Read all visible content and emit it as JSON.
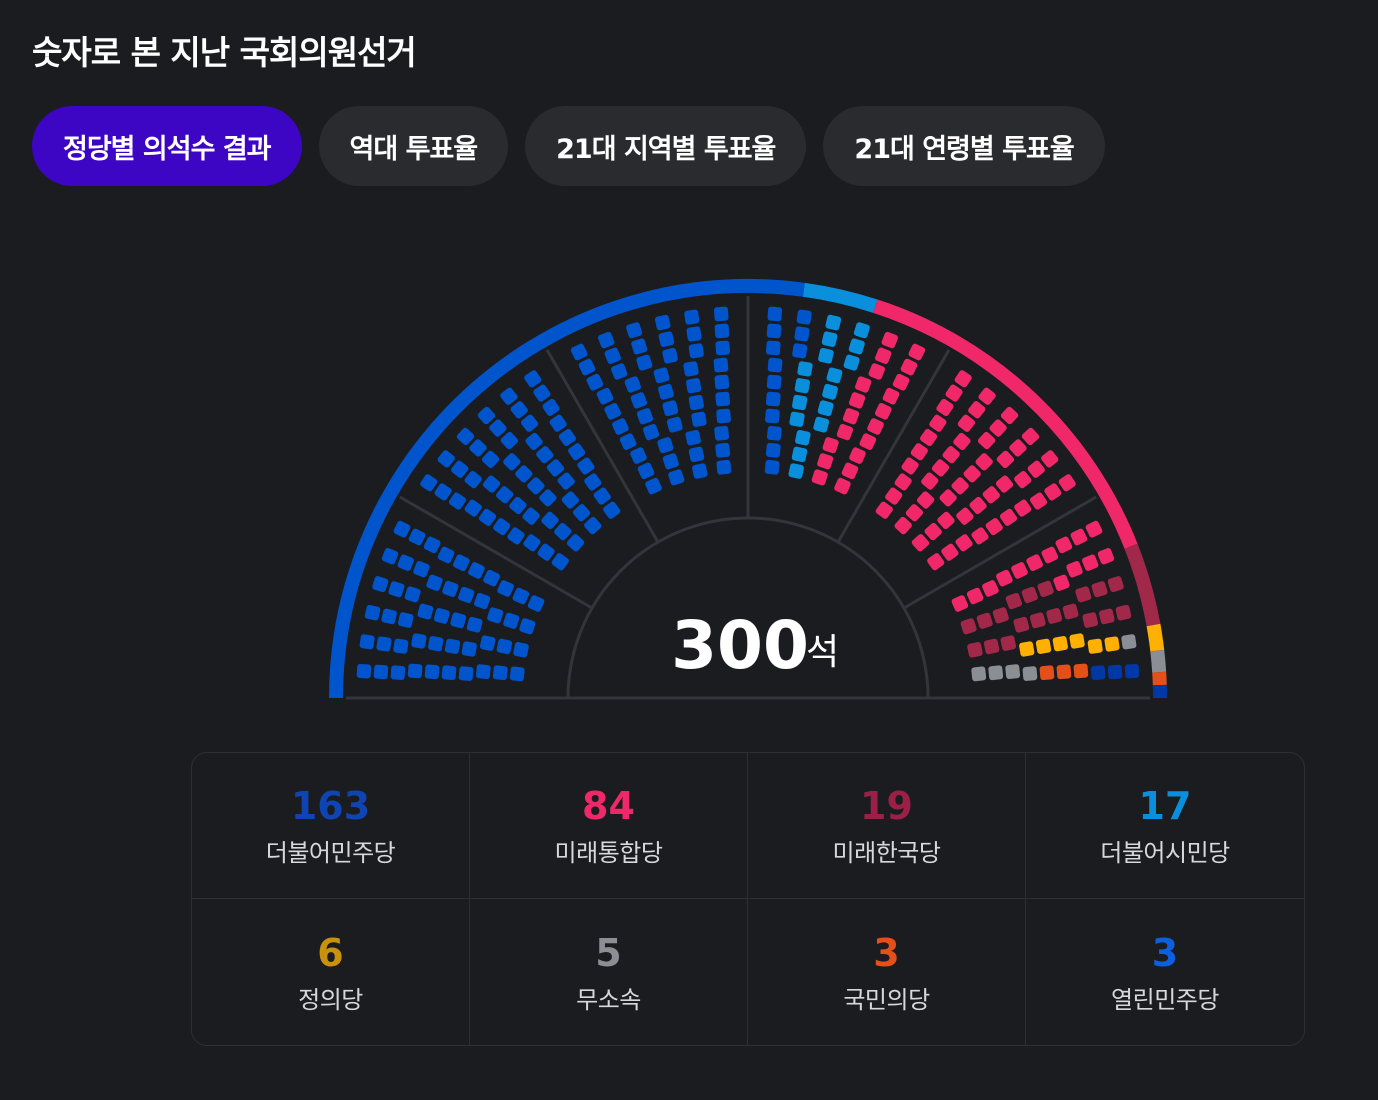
{
  "page_title": "숫자로 본 지난 국회의원선거",
  "tabs": [
    {
      "label": "정당별 의석수 결과",
      "active": true
    },
    {
      "label": "역대 투표율",
      "active": false
    },
    {
      "label": "21대 지역별 투표율",
      "active": false
    },
    {
      "label": "21대 연령별 투표율",
      "active": false
    }
  ],
  "chart_data": {
    "type": "parliament",
    "total": "300",
    "unit": "석",
    "series": [
      {
        "name": "더불어민주당",
        "value": 163,
        "color": "#0055cc"
      },
      {
        "name": "더불어시민당",
        "value": 17,
        "color": "#0a8fdc"
      },
      {
        "name": "미래통합당",
        "value": 84,
        "color": "#f0286a"
      },
      {
        "name": "미래한국당",
        "value": 19,
        "color": "#a2284a"
      },
      {
        "name": "정의당",
        "value": 6,
        "color": "#ffb000"
      },
      {
        "name": "무소속",
        "value": 5,
        "color": "#8c8e96"
      },
      {
        "name": "국민의당",
        "value": 3,
        "color": "#e4501a"
      },
      {
        "name": "열린민주당",
        "value": 3,
        "color": "#0039a6"
      }
    ]
  },
  "results": [
    {
      "count": "163",
      "name": "더불어민주당",
      "color": "#0f44b4"
    },
    {
      "count": "84",
      "name": "미래통합당",
      "color": "#f0286a"
    },
    {
      "count": "19",
      "name": "미래한국당",
      "color": "#9c2046"
    },
    {
      "count": "17",
      "name": "더불어시민당",
      "color": "#0a8fdc"
    },
    {
      "count": "6",
      "name": "정의당",
      "color": "#c9920e"
    },
    {
      "count": "5",
      "name": "무소속",
      "color": "#8c8e96"
    },
    {
      "count": "3",
      "name": "국민의당",
      "color": "#e4501a"
    },
    {
      "count": "3",
      "name": "열린민주당",
      "color": "#0d5fe0"
    }
  ]
}
